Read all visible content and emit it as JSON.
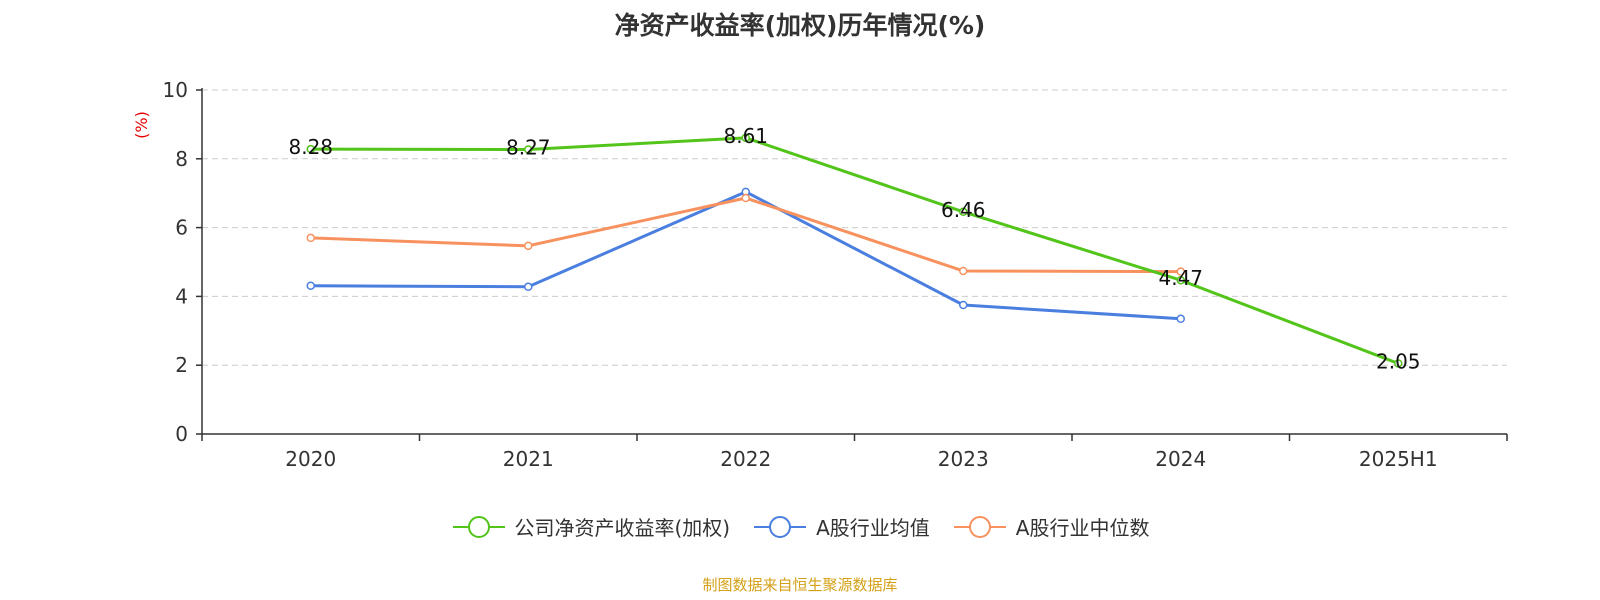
{
  "chart_data": {
    "type": "line",
    "title": "净资产收益率(加权)历年情况(%)",
    "ylabel": "(%)",
    "xlabel": "",
    "categories": [
      "2020",
      "2021",
      "2022",
      "2023",
      "2024",
      "2025H1"
    ],
    "ylim": [
      0,
      10
    ],
    "yticks": [
      0,
      2,
      4,
      6,
      8,
      10
    ],
    "grid": true,
    "legend_position": "bottom",
    "series": [
      {
        "name": "公司净资产收益率(加权)",
        "color": "#52c41a",
        "values": [
          8.28,
          8.27,
          8.61,
          6.46,
          4.47,
          2.05
        ],
        "labels": [
          "8.28",
          "8.27",
          "8.61",
          "6.46",
          "4.47",
          "2.05"
        ],
        "show_labels": true
      },
      {
        "name": "A股行业均值",
        "color": "#4a7fe0",
        "values": [
          4.31,
          4.28,
          7.04,
          3.75,
          3.35,
          null
        ],
        "show_labels": false
      },
      {
        "name": "A股行业中位数",
        "color": "#f7925f",
        "values": [
          5.7,
          5.47,
          6.86,
          4.74,
          4.72,
          null
        ],
        "show_labels": false
      }
    ]
  },
  "source": "制图数据来自恒生聚源数据库"
}
